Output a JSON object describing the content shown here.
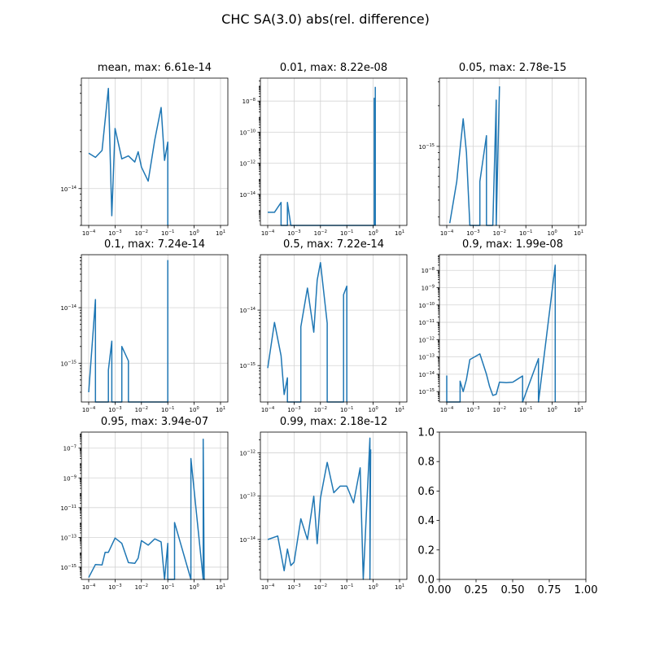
{
  "figure": {
    "suptitle": "CHC SA(3.0) abs(rel. difference)"
  },
  "colors": {
    "series": "#1f77b4",
    "grid": "#d3d3d3",
    "axes": "#000000"
  },
  "chart_data": [
    {
      "type": "line",
      "title": "mean, max: 6.61e-14",
      "xscale": "log",
      "yscale": "log",
      "grid": true,
      "xlim": [
        0.0001,
        10
      ],
      "ylim": [
        5e-15,
        8e-14
      ],
      "xticks": [
        {
          "v": 0.0001,
          "label": "10^-4"
        },
        {
          "v": 0.001,
          "label": "10^-3"
        },
        {
          "v": 0.01,
          "label": "10^-2"
        },
        {
          "v": 0.1,
          "label": "10^-1"
        },
        {
          "v": 1,
          "label": "10^0"
        },
        {
          "v": 10,
          "label": "10^1"
        }
      ],
      "yticks": [
        {
          "v": 1e-14,
          "label": "10^-14"
        }
      ],
      "x": [
        0.0001,
        0.00018,
        0.00032,
        0.00056,
        0.00075,
        0.001,
        0.0018,
        0.0032,
        0.0056,
        0.0075,
        0.01,
        0.018,
        0.032,
        0.056,
        0.075,
        0.1,
        0.1
      ],
      "y": [
        1.95e-14,
        1.8e-14,
        2.05e-14,
        6.6e-14,
        6e-15,
        3.1e-14,
        1.75e-14,
        1.85e-14,
        1.65e-14,
        2e-14,
        1.5e-14,
        1.15e-14,
        2.5e-14,
        4.6e-14,
        1.7e-14,
        2.4e-14,
        3e-15
      ]
    },
    {
      "type": "line",
      "title": "0.01, max: 8.22e-08",
      "xscale": "log",
      "yscale": "log",
      "grid": true,
      "xlim": [
        0.0001,
        10
      ],
      "ylim": [
        1e-16,
        3e-07
      ],
      "xticks": [
        {
          "v": 0.0001,
          "label": "10^-4"
        },
        {
          "v": 0.001,
          "label": "10^-3"
        },
        {
          "v": 0.01,
          "label": "10^-2"
        },
        {
          "v": 0.1,
          "label": "10^-1"
        },
        {
          "v": 1,
          "label": "10^0"
        },
        {
          "v": 10,
          "label": "10^1"
        }
      ],
      "yticks": [
        {
          "v": 1e-14,
          "label": "10^-14"
        },
        {
          "v": 1e-12,
          "label": "10^-12"
        },
        {
          "v": 1e-10,
          "label": "10^-10"
        },
        {
          "v": 1e-08,
          "label": "10^-8"
        }
      ],
      "x": [
        0.0001,
        0.00018,
        0.00032,
        0.00032,
        0.00056,
        0.00056,
        0.00075,
        0.001,
        0.0018,
        0.0032,
        0.0056,
        0.0075,
        0.01,
        0.018,
        0.032,
        0.056,
        0.075,
        0.1,
        0.18,
        0.32,
        0.56,
        1.1,
        1.1,
        1.2,
        1.2
      ],
      "y": [
        7e-16,
        7e-16,
        3e-15,
        1e-16,
        1e-16,
        3e-15,
        1e-16,
        1e-16,
        1e-16,
        1e-16,
        1e-16,
        1e-16,
        1e-16,
        1e-16,
        1e-16,
        1e-16,
        1e-16,
        1e-16,
        1e-16,
        1e-16,
        1e-16,
        1e-16,
        1.5e-08,
        1e-16,
        8.2e-08
      ]
    },
    {
      "type": "line",
      "title": "0.05, max: 2.78e-15",
      "xscale": "log",
      "yscale": "log",
      "grid": true,
      "xlim": [
        0.0001,
        10
      ],
      "ylim": [
        2.6e-16,
        3.2e-15
      ],
      "xticks": [
        {
          "v": 0.0001,
          "label": "10^-4"
        },
        {
          "v": 0.001,
          "label": "10^-3"
        },
        {
          "v": 0.01,
          "label": "10^-2"
        },
        {
          "v": 0.1,
          "label": "10^-1"
        },
        {
          "v": 1,
          "label": "10^0"
        },
        {
          "v": 10,
          "label": "10^1"
        }
      ],
      "yticks": [
        {
          "v": 1e-15,
          "label": "10^-15"
        }
      ],
      "x": [
        0.00013,
        0.00024,
        0.00042,
        0.00056,
        0.00075,
        0.00075,
        0.001,
        0.0018,
        0.0018,
        0.0032,
        0.0032,
        0.0056,
        0.0075,
        0.0075,
        0.01
      ],
      "y": [
        2.7e-16,
        5.5e-16,
        1.6e-15,
        9e-16,
        2.6e-16,
        2.6e-16,
        2.6e-16,
        2.6e-16,
        5.5e-16,
        1.2e-15,
        2.6e-16,
        2.6e-16,
        2.2e-15,
        2.6e-16,
        2.78e-15
      ]
    },
    {
      "type": "line",
      "title": "0.1, max: 7.24e-14",
      "xscale": "log",
      "yscale": "log",
      "grid": true,
      "xlim": [
        0.0001,
        10
      ],
      "ylim": [
        2e-16,
        9e-14
      ],
      "xticks": [
        {
          "v": 0.0001,
          "label": "10^-4"
        },
        {
          "v": 0.001,
          "label": "10^-3"
        },
        {
          "v": 0.01,
          "label": "10^-2"
        },
        {
          "v": 0.1,
          "label": "10^-1"
        },
        {
          "v": 1,
          "label": "10^0"
        },
        {
          "v": 10,
          "label": "10^1"
        }
      ],
      "yticks": [
        {
          "v": 1e-15,
          "label": "10^-15"
        },
        {
          "v": 1e-14,
          "label": "10^-14"
        }
      ],
      "x": [
        0.0001,
        0.00018,
        0.00018,
        0.00056,
        0.00056,
        0.00075,
        0.00075,
        0.0018,
        0.0018,
        0.0032,
        0.0032,
        0.1,
        0.1
      ],
      "y": [
        3e-16,
        1.4e-14,
        2e-16,
        2e-16,
        7.5e-16,
        2.5e-15,
        2e-16,
        2e-16,
        2e-15,
        1.1e-15,
        2e-16,
        2e-16,
        7.2e-14
      ]
    },
    {
      "type": "line",
      "title": "0.5, max: 7.22e-14",
      "xscale": "log",
      "yscale": "log",
      "grid": true,
      "xlim": [
        0.0001,
        10
      ],
      "ylim": [
        2.2e-16,
        1e-13
      ],
      "xticks": [
        {
          "v": 0.0001,
          "label": "10^-4"
        },
        {
          "v": 0.001,
          "label": "10^-3"
        },
        {
          "v": 0.01,
          "label": "10^-2"
        },
        {
          "v": 0.1,
          "label": "10^-1"
        },
        {
          "v": 1,
          "label": "10^0"
        },
        {
          "v": 10,
          "label": "10^1"
        }
      ],
      "yticks": [
        {
          "v": 1e-15,
          "label": "10^-15"
        },
        {
          "v": 1e-14,
          "label": "10^-14"
        }
      ],
      "x": [
        0.0001,
        0.00018,
        0.00032,
        0.00042,
        0.00056,
        0.00056,
        0.0018,
        0.0018,
        0.0032,
        0.0056,
        0.0075,
        0.01,
        0.018,
        0.018,
        0.075,
        0.075,
        0.1,
        0.1
      ],
      "y": [
        9e-16,
        6e-15,
        1.5e-15,
        3e-16,
        6e-16,
        2.2e-16,
        2.2e-16,
        5e-15,
        2.5e-14,
        4e-15,
        3.5e-14,
        7.2e-14,
        5.8e-15,
        2.2e-16,
        2.2e-16,
        1.9e-14,
        2.7e-14,
        2.2e-16
      ]
    },
    {
      "type": "line",
      "title": "0.9, max: 1.99e-08",
      "xscale": "log",
      "yscale": "log",
      "grid": true,
      "xlim": [
        0.0001,
        10
      ],
      "ylim": [
        2.5e-16,
        8e-08
      ],
      "xticks": [
        {
          "v": 0.0001,
          "label": "10^-4"
        },
        {
          "v": 0.001,
          "label": "10^-3"
        },
        {
          "v": 0.01,
          "label": "10^-2"
        },
        {
          "v": 0.1,
          "label": "10^-1"
        },
        {
          "v": 1,
          "label": "10^0"
        },
        {
          "v": 10,
          "label": "10^1"
        }
      ],
      "yticks": [
        {
          "v": 1e-15,
          "label": "10^-15"
        },
        {
          "v": 1e-14,
          "label": "10^-14"
        },
        {
          "v": 1e-13,
          "label": "10^-13"
        },
        {
          "v": 1e-12,
          "label": "10^-12"
        },
        {
          "v": 1e-11,
          "label": "10^-11"
        },
        {
          "v": 1e-10,
          "label": "10^-10"
        },
        {
          "v": 1e-09,
          "label": "10^-9"
        },
        {
          "v": 1e-08,
          "label": "10^-8"
        }
      ],
      "x": [
        0.0001,
        0.0001,
        0.0001,
        0.00032,
        0.00032,
        0.00042,
        0.00056,
        0.00075,
        0.0018,
        0.0032,
        0.0042,
        0.0056,
        0.0075,
        0.01,
        0.018,
        0.032,
        0.075,
        0.075,
        0.3,
        0.3,
        1.3,
        1.3
      ],
      "y": [
        2.5e-16,
        8e-15,
        2.5e-16,
        2.5e-16,
        4e-15,
        1e-15,
        5e-15,
        7e-14,
        1.5e-13,
        1e-14,
        2e-15,
        6e-16,
        7e-16,
        3.5e-15,
        3.3e-15,
        3.5e-15,
        8e-15,
        2.5e-16,
        8e-14,
        2.5e-16,
        1.99e-08,
        2.5e-16
      ]
    },
    {
      "type": "line",
      "title": "0.95, max: 3.94e-07",
      "xscale": "log",
      "yscale": "log",
      "grid": true,
      "xlim": [
        0.0001,
        10
      ],
      "ylim": [
        1.5e-16,
        1.2e-06
      ],
      "xticks": [
        {
          "v": 0.0001,
          "label": "10^-4"
        },
        {
          "v": 0.001,
          "label": "10^-3"
        },
        {
          "v": 0.01,
          "label": "10^-2"
        },
        {
          "v": 0.1,
          "label": "10^-1"
        },
        {
          "v": 1,
          "label": "10^0"
        },
        {
          "v": 10,
          "label": "10^1"
        }
      ],
      "yticks": [
        {
          "v": 1e-15,
          "label": "10^-15"
        },
        {
          "v": 1e-13,
          "label": "10^-13"
        },
        {
          "v": 1e-11,
          "label": "10^-11"
        },
        {
          "v": 1e-09,
          "label": "10^-9"
        },
        {
          "v": 1e-07,
          "label": "10^-7"
        }
      ],
      "x": [
        0.0001,
        0.00018,
        0.00032,
        0.00042,
        0.00056,
        0.001,
        0.0018,
        0.0032,
        0.0056,
        0.0075,
        0.01,
        0.018,
        0.032,
        0.056,
        0.075,
        0.1,
        0.1,
        0.18,
        0.18,
        0.75,
        0.75,
        2.2,
        2.2,
        2.4,
        2.4,
        2.6,
        2.6
      ],
      "y": [
        2e-16,
        1.5e-15,
        1.4e-15,
        1e-14,
        1e-14,
        9e-14,
        4e-14,
        2e-15,
        1.8e-15,
        4e-15,
        6e-14,
        3e-14,
        8e-14,
        5e-14,
        1.5e-16,
        4e-14,
        1.5e-16,
        1.5e-16,
        1e-12,
        1.5e-16,
        2e-08,
        1.5e-16,
        3.94e-07,
        1.5e-16,
        1.5e-16,
        1.5e-16,
        1.5e-16
      ]
    },
    {
      "type": "line",
      "title": "0.99, max: 2.18e-12",
      "xscale": "log",
      "yscale": "log",
      "grid": true,
      "xlim": [
        0.0001,
        10
      ],
      "ylim": [
        1.2e-15,
        3e-12
      ],
      "xticks": [
        {
          "v": 0.0001,
          "label": "10^-4"
        },
        {
          "v": 0.001,
          "label": "10^-3"
        },
        {
          "v": 0.01,
          "label": "10^-2"
        },
        {
          "v": 0.1,
          "label": "10^-1"
        },
        {
          "v": 1,
          "label": "10^0"
        },
        {
          "v": 10,
          "label": "10^1"
        }
      ],
      "yticks": [
        {
          "v": 1e-14,
          "label": "10^-14"
        },
        {
          "v": 1e-13,
          "label": "10^-13"
        },
        {
          "v": 1e-12,
          "label": "10^-12"
        }
      ],
      "x": [
        0.0001,
        0.00024,
        0.00042,
        0.00056,
        0.00075,
        0.001,
        0.0018,
        0.0032,
        0.0056,
        0.0075,
        0.01,
        0.018,
        0.032,
        0.056,
        0.1,
        0.18,
        0.32,
        0.42,
        0.42,
        0.75,
        0.75,
        0.8
      ],
      "y": [
        1e-14,
        1.2e-14,
        1.9e-15,
        6e-15,
        2.5e-15,
        3e-15,
        3e-14,
        1e-14,
        1e-13,
        8e-15,
        9e-14,
        6e-13,
        1.2e-13,
        1.7e-13,
        1.7e-13,
        7e-14,
        4.5e-13,
        1.2e-15,
        1.2e-15,
        2.18e-12,
        1.2e-15,
        1.2e-12
      ]
    },
    {
      "type": "empty",
      "title": "",
      "xlim": [
        0,
        1
      ],
      "ylim": [
        0,
        1
      ],
      "xticks": [
        {
          "v": 0,
          "label": "0.00"
        },
        {
          "v": 0.25,
          "label": "0.25"
        },
        {
          "v": 0.5,
          "label": "0.50"
        },
        {
          "v": 0.75,
          "label": "0.75"
        },
        {
          "v": 1,
          "label": "1.00"
        }
      ],
      "yticks": [
        {
          "v": 0,
          "label": "0.0"
        },
        {
          "v": 0.2,
          "label": "0.2"
        },
        {
          "v": 0.4,
          "label": "0.4"
        },
        {
          "v": 0.6,
          "label": "0.6"
        },
        {
          "v": 0.8,
          "label": "0.8"
        },
        {
          "v": 1,
          "label": "1.0"
        }
      ]
    }
  ]
}
